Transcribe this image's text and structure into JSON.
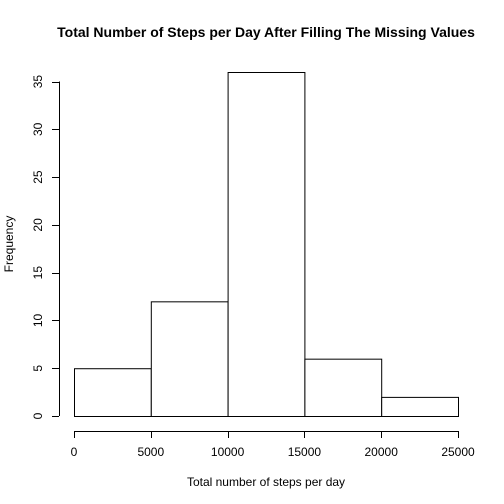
{
  "chart_data": {
    "type": "bar",
    "title": "Total Number of Steps per Day After Filling The Missing Values",
    "xlabel": "Total number of steps per day",
    "ylabel": "Frequency",
    "bins": [
      {
        "start": 0,
        "end": 5000,
        "count": 5
      },
      {
        "start": 5000,
        "end": 10000,
        "count": 12
      },
      {
        "start": 10000,
        "end": 15000,
        "count": 36
      },
      {
        "start": 15000,
        "end": 20000,
        "count": 6
      },
      {
        "start": 20000,
        "end": 25000,
        "count": 2
      }
    ],
    "xlim": [
      0,
      25000
    ],
    "ylim": [
      0,
      36
    ],
    "x_ticks": [
      0,
      5000,
      10000,
      15000,
      20000,
      25000
    ],
    "y_ticks": [
      0,
      5,
      10,
      15,
      20,
      25,
      30,
      35
    ],
    "grid": false,
    "bar_fill": "#ffffff",
    "bar_stroke": "#000000"
  }
}
